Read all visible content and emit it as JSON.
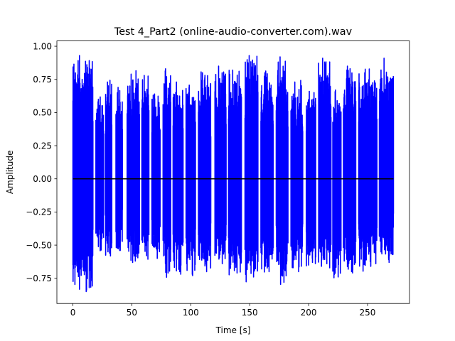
{
  "chart_data": {
    "type": "line",
    "title": "Test 4_Part2 (online-audio-converter.com).wav",
    "xlabel": "Time [s]",
    "ylabel": "Amplitude",
    "xlim": [
      -13.6,
      285.6
    ],
    "ylim": [
      -0.94,
      1.04
    ],
    "x_ticks": [
      0,
      50,
      100,
      150,
      200,
      250
    ],
    "x_tick_labels": [
      "0",
      "50",
      "100",
      "150",
      "200",
      "250"
    ],
    "y_ticks": [
      -0.75,
      -0.5,
      -0.25,
      0.0,
      0.25,
      0.5,
      0.75,
      1.0
    ],
    "y_tick_labels": [
      "−0.75",
      "−0.50",
      "−0.25",
      "0.00",
      "0.25",
      "0.50",
      "0.75",
      "1.00"
    ],
    "grid": false,
    "colors": {
      "signal": "#0000ff",
      "zero_line": "#000000"
    },
    "series": [
      {
        "role": "signal",
        "duration": 272,
        "bursts": [
          {
            "start": 0.0,
            "end": 17.0,
            "max": 0.93,
            "min": -0.85
          },
          {
            "start": 19.5,
            "end": 26.0,
            "max": 0.6,
            "min": -0.52
          },
          {
            "start": 27.5,
            "end": 33.0,
            "max": 0.73,
            "min": -0.56
          },
          {
            "start": 36.5,
            "end": 42.0,
            "max": 0.69,
            "min": -0.54
          },
          {
            "start": 46.0,
            "end": 56.5,
            "max": 0.79,
            "min": -0.62
          },
          {
            "start": 58.5,
            "end": 64.5,
            "max": 0.78,
            "min": -0.58
          },
          {
            "start": 67.0,
            "end": 74.0,
            "max": 0.64,
            "min": -0.6
          },
          {
            "start": 76.5,
            "end": 83.0,
            "max": 0.83,
            "min": -0.71
          },
          {
            "start": 85.0,
            "end": 93.5,
            "max": 0.73,
            "min": -0.7
          },
          {
            "start": 96.0,
            "end": 104.0,
            "max": 0.69,
            "min": -0.72
          },
          {
            "start": 106.5,
            "end": 117.0,
            "max": 0.8,
            "min": -0.7
          },
          {
            "start": 120.5,
            "end": 130.0,
            "max": 0.85,
            "min": -0.64
          },
          {
            "start": 132.0,
            "end": 143.0,
            "max": 0.82,
            "min": -0.71
          },
          {
            "start": 146.0,
            "end": 157.0,
            "max": 0.93,
            "min": -0.74
          },
          {
            "start": 159.5,
            "end": 170.0,
            "max": 0.8,
            "min": -0.7
          },
          {
            "start": 172.5,
            "end": 182.5,
            "max": 0.92,
            "min": -0.78
          },
          {
            "start": 185.0,
            "end": 195.0,
            "max": 0.73,
            "min": -0.7
          },
          {
            "start": 198.0,
            "end": 206.0,
            "max": 0.66,
            "min": -0.63
          },
          {
            "start": 208.5,
            "end": 219.0,
            "max": 0.91,
            "min": -0.64
          },
          {
            "start": 220.5,
            "end": 227.5,
            "max": 0.67,
            "min": -0.74
          },
          {
            "start": 229.5,
            "end": 240.0,
            "max": 0.85,
            "min": -0.7
          },
          {
            "start": 242.5,
            "end": 258.0,
            "max": 0.8,
            "min": -0.66
          },
          {
            "start": 260.0,
            "end": 272.0,
            "max": 0.91,
            "min": -0.61
          }
        ]
      },
      {
        "role": "zero_line",
        "x": [
          0,
          272
        ],
        "y": [
          0,
          0
        ]
      }
    ]
  }
}
